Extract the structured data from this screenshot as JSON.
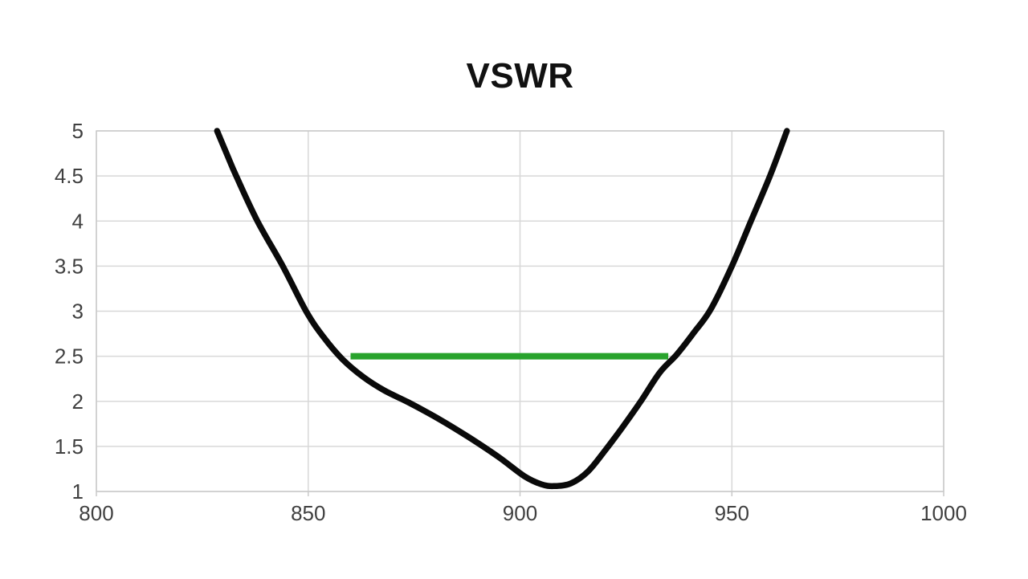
{
  "chart_data": {
    "type": "line",
    "title": "VSWR",
    "xlabel": "",
    "ylabel": "",
    "xlim": [
      800,
      1000
    ],
    "ylim": [
      1,
      5
    ],
    "x_ticks": [
      800,
      850,
      900,
      950,
      1000
    ],
    "y_ticks": [
      1,
      1.5,
      2,
      2.5,
      3,
      3.5,
      4,
      4.5,
      5
    ],
    "grid": true,
    "legend": "none",
    "series": [
      {
        "name": "vswr-curve",
        "color": "#0a0a0a",
        "stroke_width": 7.5,
        "smooth": true,
        "points": [
          [
            828.5,
            5.0
          ],
          [
            831,
            4.72
          ],
          [
            833,
            4.5
          ],
          [
            838,
            4.0
          ],
          [
            844,
            3.5
          ],
          [
            849.5,
            3.0
          ],
          [
            853.5,
            2.72
          ],
          [
            858,
            2.47
          ],
          [
            863,
            2.27
          ],
          [
            868,
            2.12
          ],
          [
            874,
            1.98
          ],
          [
            881,
            1.8
          ],
          [
            888,
            1.6
          ],
          [
            895,
            1.38
          ],
          [
            901,
            1.17
          ],
          [
            905,
            1.08
          ],
          [
            908,
            1.06
          ],
          [
            912,
            1.09
          ],
          [
            916,
            1.22
          ],
          [
            920,
            1.45
          ],
          [
            924,
            1.7
          ],
          [
            928.5,
            2.0
          ],
          [
            933,
            2.32
          ],
          [
            937,
            2.52
          ],
          [
            941,
            2.76
          ],
          [
            945,
            3.02
          ],
          [
            950,
            3.5
          ],
          [
            954.5,
            4.0
          ],
          [
            959,
            4.5
          ],
          [
            963,
            5.0
          ]
        ]
      },
      {
        "name": "limit-line-2.5",
        "color": "#28a32c",
        "stroke_width": 8,
        "smooth": false,
        "points": [
          [
            860,
            2.5
          ],
          [
            935,
            2.5
          ]
        ]
      }
    ],
    "colors": {
      "curve": "#0a0a0a",
      "limit_line": "#28a32c",
      "gridline": "#d8d8d8",
      "plot_border": "#c9c9c9",
      "tick_label": "#404040",
      "title": "#111111",
      "background": "#ffffff"
    }
  }
}
